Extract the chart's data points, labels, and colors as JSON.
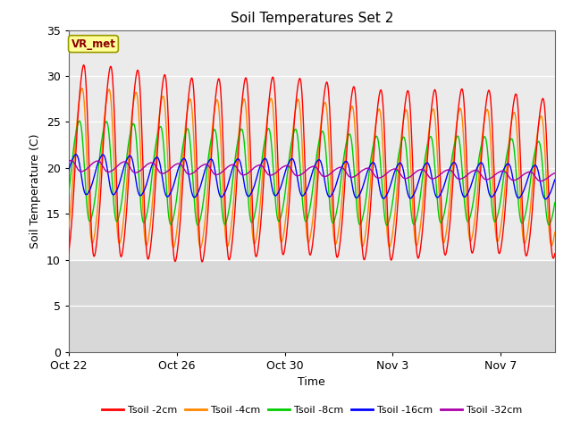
{
  "title": "Soil Temperatures Set 2",
  "xlabel": "Time",
  "ylabel": "Soil Temperature (C)",
  "ylim": [
    0,
    35
  ],
  "yticks": [
    0,
    5,
    10,
    15,
    20,
    25,
    30,
    35
  ],
  "background_color": "#ffffff",
  "upper_bg_color": "#ebebeb",
  "lower_bg_color": "#d8d8d8",
  "grid_color": "#ffffff",
  "series_colors": {
    "Tsoil -2cm": "#ff0000",
    "Tsoil -4cm": "#ff8800",
    "Tsoil -8cm": "#00cc00",
    "Tsoil -16cm": "#0000ff",
    "Tsoil -32cm": "#aa00aa"
  },
  "legend_labels": [
    "Tsoil -2cm",
    "Tsoil -4cm",
    "Tsoil -8cm",
    "Tsoil -16cm",
    "Tsoil -32cm"
  ],
  "annotation_text": "VR_met",
  "annotation_color": "#8b0000",
  "annotation_bg": "#ffff99",
  "annotation_border": "#999900",
  "x_tick_labels": [
    "Oct 22",
    "Oct 26",
    "Oct 30",
    "Nov 3",
    "Nov 7"
  ],
  "x_tick_positions": [
    0,
    4,
    8,
    12,
    16
  ],
  "n_days": 18
}
